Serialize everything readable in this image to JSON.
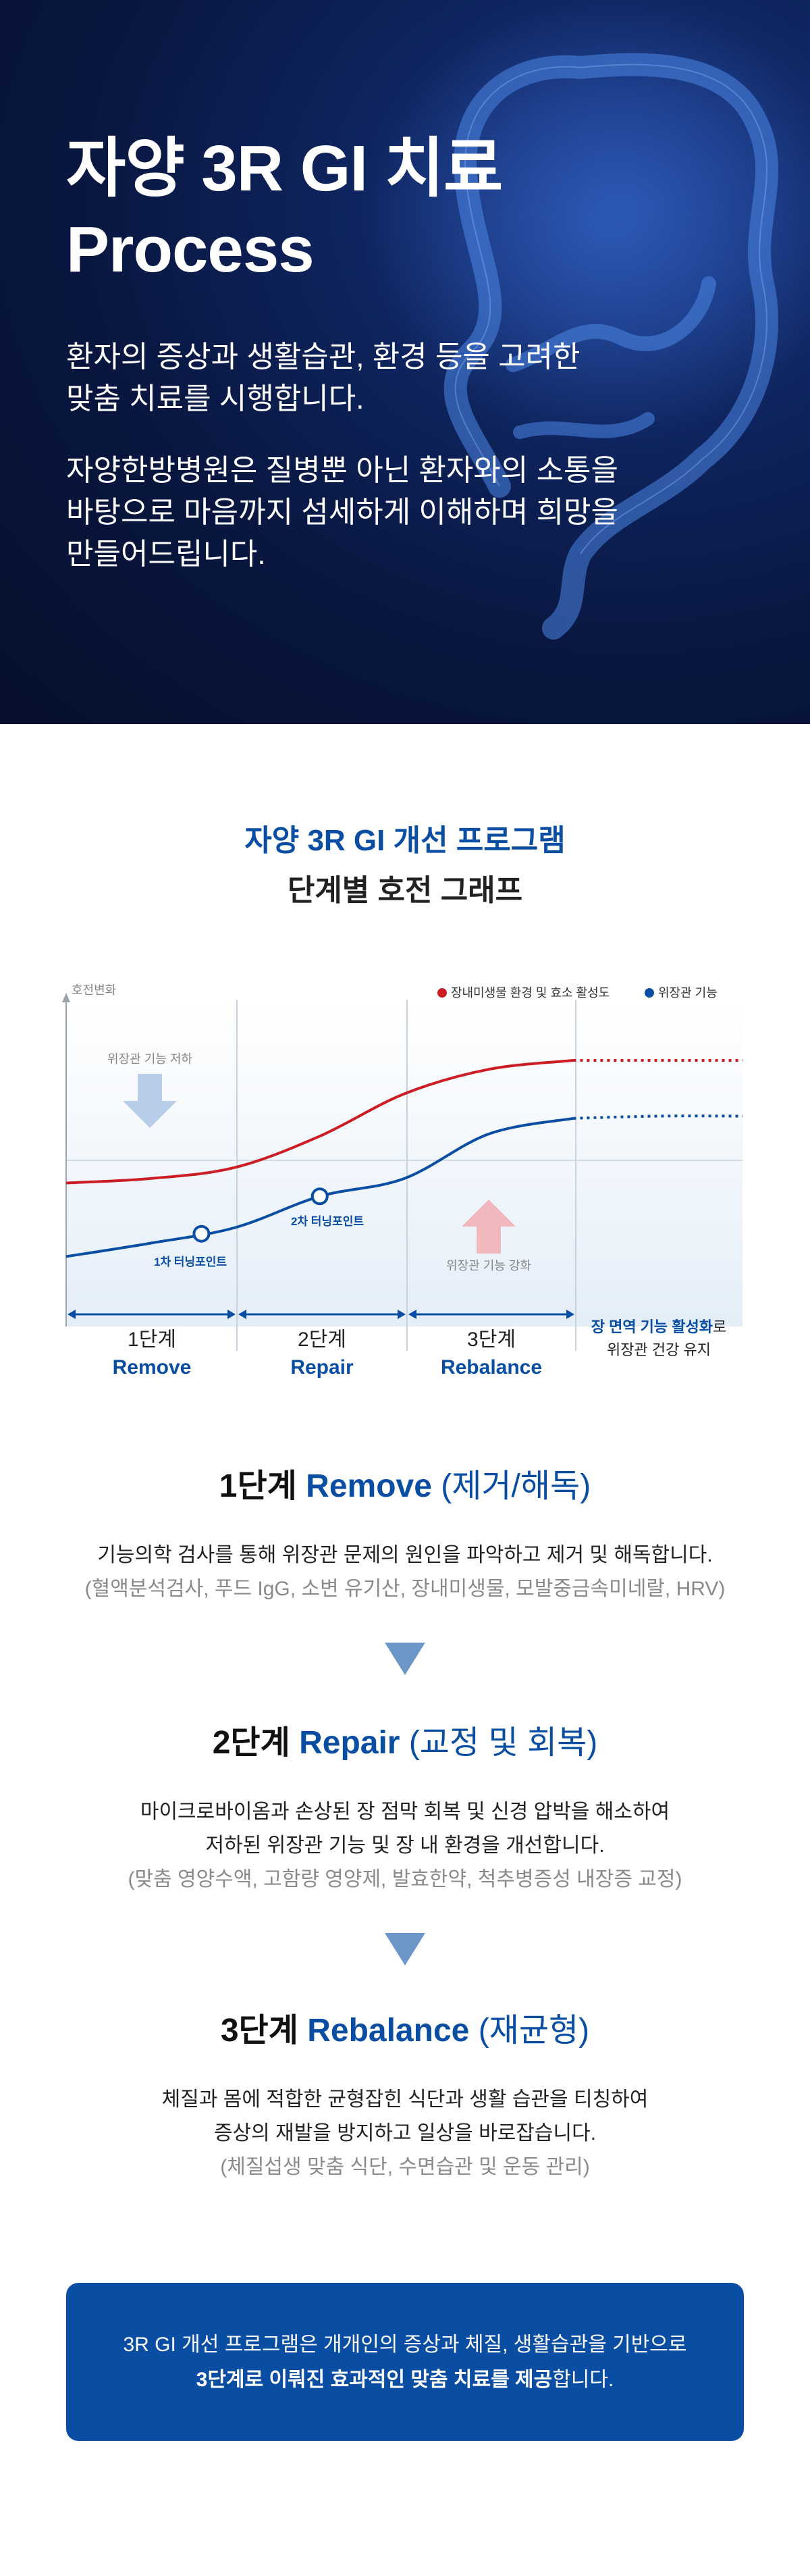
{
  "hero": {
    "title_line1": "자양 3R GI 치료",
    "title_line2": "Process",
    "para1_line1": "환자의 증상과 생활습관, 환경 등을 고려한",
    "para1_line2": "맞춤 치료를 시행합니다.",
    "para2_line1": "자양한방병원은 질병뿐 아닌 환자와의 소통을",
    "para2_line2": "바탕으로 마음까지 섬세하게 이해하며 희망을",
    "para2_line3": "만들어드립니다."
  },
  "graph_section": {
    "title_line1": "자양 3R GI 개선 프로그램",
    "title_line2": "단계별 호전 그래프"
  },
  "chart_data": {
    "type": "line",
    "ylabel": "호전변화",
    "series": [
      {
        "name": "장내미생물 환경 및 효소 활성도",
        "color": "#cc1d25",
        "x": [
          0,
          0.5,
          1,
          1.5,
          2,
          2.5,
          3,
          3.5,
          4
        ],
        "values": [
          0.45,
          0.47,
          0.52,
          0.66,
          0.85,
          0.96,
          1.0,
          1.0,
          1.0
        ],
        "projected_from": 3
      },
      {
        "name": "위장관 기능",
        "color": "#0a4ea3",
        "x": [
          0,
          0.5,
          1,
          1.5,
          2,
          2.5,
          3,
          3.5,
          4
        ],
        "values": [
          0.12,
          0.18,
          0.25,
          0.39,
          0.47,
          0.67,
          0.74,
          0.75,
          0.75
        ],
        "projected_from": 3
      }
    ],
    "turning_points": [
      {
        "label": "1차 터닝포인트",
        "x": 0.8,
        "series": "위장관 기능"
      },
      {
        "label": "2차 터닝포인트",
        "x": 1.5,
        "series": "위장관 기능"
      }
    ],
    "annotations": {
      "decline": "위장관 기능 저하",
      "strengthen": "위장관 기능 강화"
    },
    "stages": [
      {
        "label": "1단계",
        "name": "Remove"
      },
      {
        "label": "2단계",
        "name": "Repair"
      },
      {
        "label": "3단계",
        "name": "Rebalance"
      }
    ],
    "final_note": {
      "highlight": "장 면역 기능 활성화",
      "suffix": "로",
      "line2": "위장관 건강 유지"
    }
  },
  "steps": [
    {
      "num": "1단계",
      "en": "Remove",
      "ko": "(제거/해독)",
      "lines": [
        "기능의학 검사를 통해 위장관 문제의 원인을 파악하고 제거 및 해독합니다."
      ],
      "sub": "(혈액분석검사, 푸드 IgG, 소변 유기산, 장내미생물, 모발중금속미네랄, HRV)"
    },
    {
      "num": "2단계",
      "en": "Repair",
      "ko": "(교정 및 회복)",
      "lines": [
        "마이크로바이옴과 손상된 장 점막 회복 및 신경 압박을 해소하여",
        "저하된 위장관 기능 및 장 내 환경을 개선합니다."
      ],
      "sub": "(맞춤 영양수액, 고함량 영양제, 발효한약, 척추병증성 내장증 교정)"
    },
    {
      "num": "3단계",
      "en": "Rebalance",
      "ko": "(재균형)",
      "lines": [
        "체질과 몸에 적합한 균형잡힌 식단과 생활 습관을 티칭하여",
        "증상의 재발을 방지하고 일상을 바로잡습니다."
      ],
      "sub": "(체질섭생 맞춤 식단, 수면습관 및 운동 관리)"
    }
  ],
  "summary_box": {
    "line1": "3R GI 개선 프로그램은 개개인의 증상과 체질, 생활습관을 기반으로",
    "line2_bold": "3단계로 이뤄진 효과적인 맞춤 치료를 제공",
    "line2_rest": "합니다."
  },
  "colors": {
    "brand_blue": "#0a4ea3",
    "red": "#cc1d25",
    "arrow_blue": "#6d96c8",
    "hero_bg": "#091741"
  }
}
